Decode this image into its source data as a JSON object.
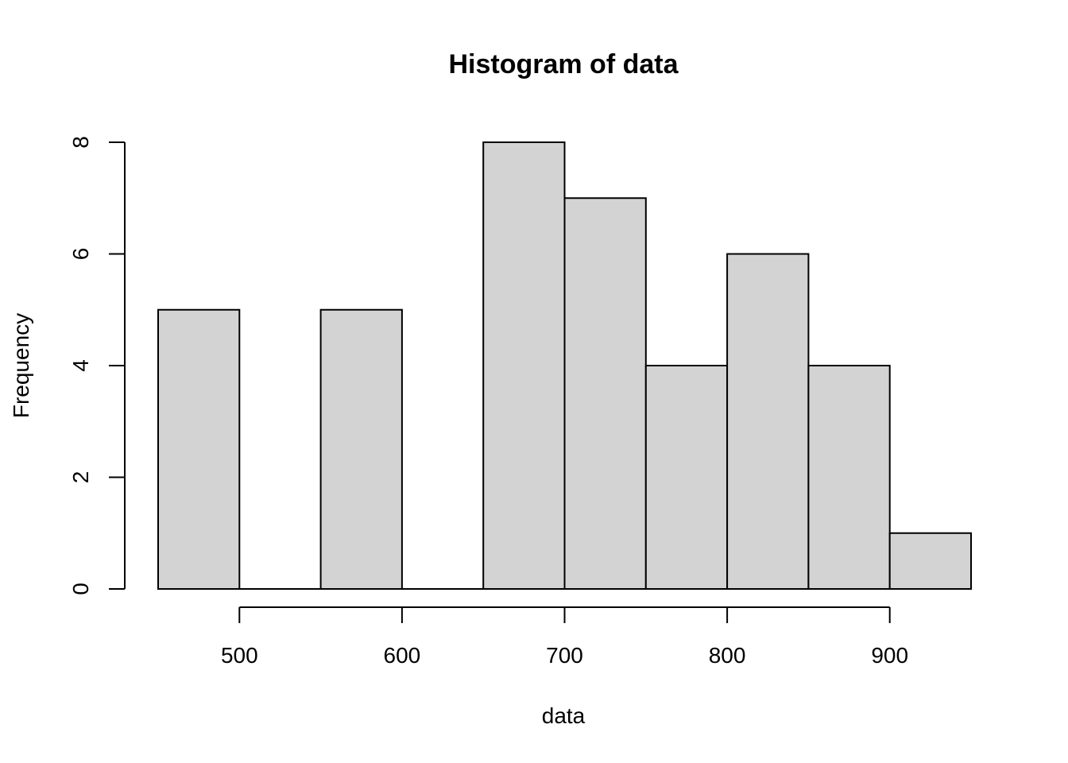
{
  "chart_data": {
    "type": "bar",
    "title": "Histogram of data",
    "xlabel": "data",
    "ylabel": "Frequency",
    "bins": [
      {
        "start": 450,
        "end": 500,
        "count": 5
      },
      {
        "start": 500,
        "end": 550,
        "count": 0
      },
      {
        "start": 550,
        "end": 600,
        "count": 5
      },
      {
        "start": 600,
        "end": 650,
        "count": 0
      },
      {
        "start": 650,
        "end": 700,
        "count": 8
      },
      {
        "start": 700,
        "end": 750,
        "count": 7
      },
      {
        "start": 750,
        "end": 800,
        "count": 4
      },
      {
        "start": 800,
        "end": 850,
        "count": 6
      },
      {
        "start": 850,
        "end": 900,
        "count": 4
      },
      {
        "start": 900,
        "end": 950,
        "count": 1
      }
    ],
    "xlim": [
      450,
      950
    ],
    "ylim": [
      0,
      8
    ],
    "x_ticks": [
      500,
      600,
      700,
      800,
      900
    ],
    "y_ticks": [
      0,
      2,
      4,
      6,
      8
    ],
    "bar_color": "#d3d3d3",
    "edge_color": "#000000",
    "grid": false
  }
}
